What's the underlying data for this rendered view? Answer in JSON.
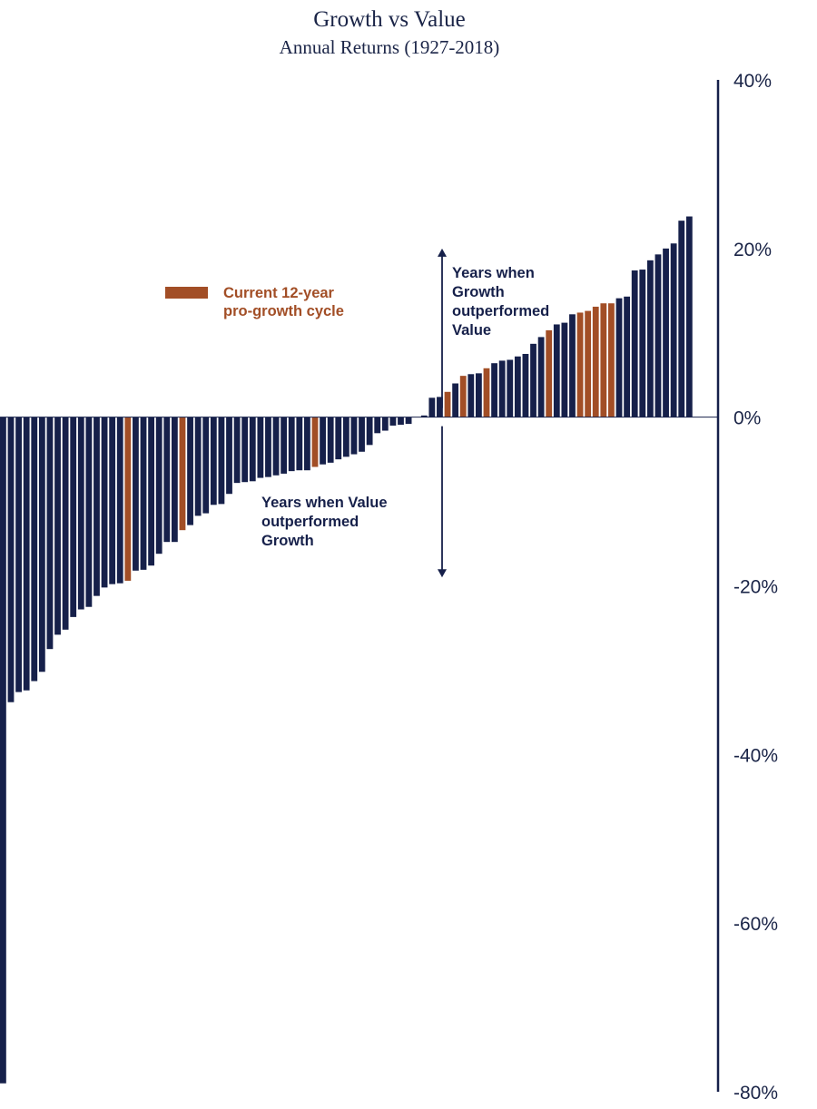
{
  "chart_data": {
    "type": "bar",
    "title": "Growth vs Value",
    "subtitle": "Annual Returns (1927-2018)",
    "xlabel": "",
    "ylabel": "",
    "ylim": [
      -80,
      40
    ],
    "yticks": [
      40,
      20,
      0,
      -20,
      -40,
      -60,
      -80
    ],
    "ytick_labels": [
      "40%",
      "20%",
      "0%",
      "-20%",
      "-40%",
      "-60%",
      "-80%"
    ],
    "grid": false,
    "sorted": "ascending",
    "colors": {
      "default": "#16204a",
      "highlight": "#a24e26",
      "axis": "#16204a"
    },
    "values": [
      -79,
      -33.8,
      -32.6,
      -32.4,
      -31.3,
      -30.2,
      -27.5,
      -25.8,
      -25.2,
      -23.7,
      -22.8,
      -22.5,
      -21.2,
      -20.2,
      -19.8,
      -19.7,
      -19.4,
      -18.2,
      -18.1,
      -17.6,
      -16.2,
      -14.8,
      -14.8,
      -13.4,
      -12.8,
      -11.7,
      -11.4,
      -10.4,
      -10.3,
      -9.1,
      -7.8,
      -7.7,
      -7.6,
      -7.2,
      -7.1,
      -6.9,
      -6.7,
      -6.4,
      -6.3,
      -6.3,
      -5.9,
      -5.6,
      -5.4,
      -5.0,
      -4.7,
      -4.4,
      -4.1,
      -3.3,
      -1.9,
      -1.6,
      -1.0,
      -0.9,
      -0.8,
      0,
      0.2,
      2.3,
      2.4,
      3.0,
      4.0,
      4.9,
      5.1,
      5.2,
      5.8,
      6.4,
      6.7,
      6.8,
      7.2,
      7.5,
      8.7,
      9.5,
      10.3,
      11.0,
      11.2,
      12.2,
      12.4,
      12.6,
      13.1,
      13.5,
      13.5,
      14.1,
      14.3,
      17.4,
      17.5,
      18.6,
      19.3,
      20.0,
      20.6,
      23.3,
      23.8
    ],
    "highlighted_indices": [
      16,
      23,
      40,
      57,
      59,
      62,
      70,
      74,
      75,
      76,
      77,
      78
    ],
    "legend": {
      "label": "Current 12-year pro-growth cycle",
      "label_lines": [
        "Current 12-year",
        "pro-growth cycle"
      ],
      "placement": "top-left"
    },
    "annotations": {
      "growth_label": [
        "Years when",
        "Growth",
        "outperformed",
        "Value"
      ],
      "value_label": [
        "Years when Value",
        "outperformed",
        "Growth"
      ],
      "arrow_up_to": 20,
      "arrow_down_to": -19
    }
  }
}
